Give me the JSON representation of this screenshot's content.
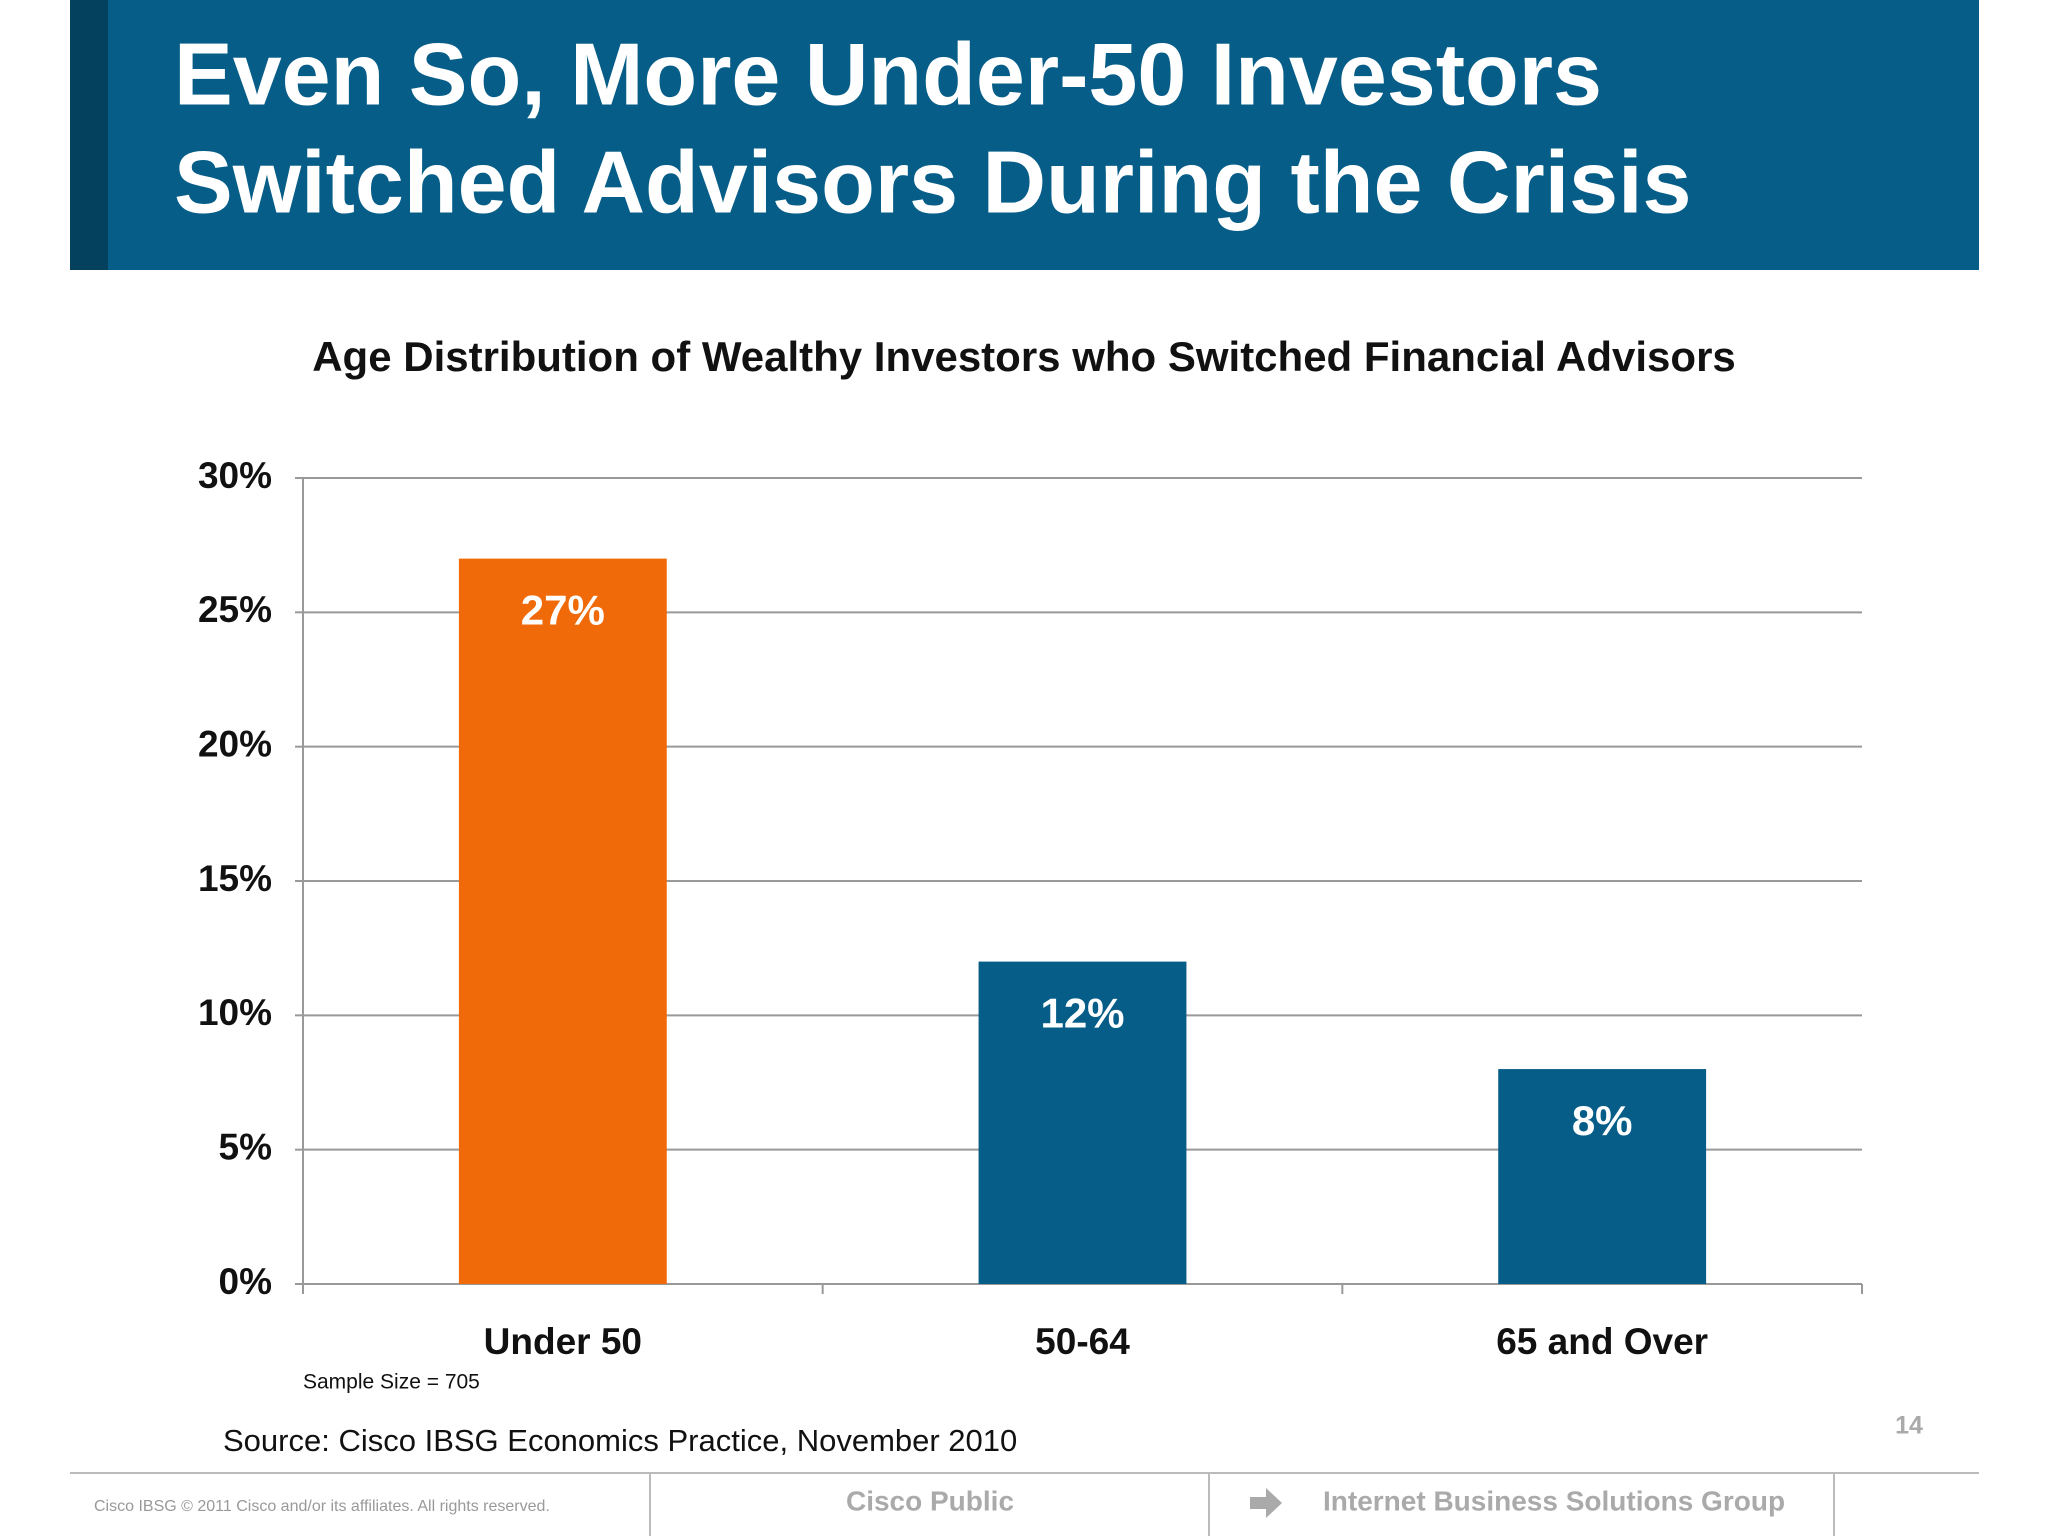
{
  "slide": {
    "title_lines": [
      "Even So, More Under-50 Investors",
      "Switched Advisors During the Crisis"
    ],
    "sample_note": "Sample Size = 705",
    "source": "Source: Cisco IBSG Economics Practice, November 2010",
    "page_number": "14",
    "footer_copyright": "Cisco IBSG © 2011 Cisco and/or its affiliates. All rights reserved.",
    "footer_classification": "Cisco Public",
    "footer_group": "Internet Business Solutions Group"
  },
  "chart_data": {
    "type": "bar",
    "title": "Age Distribution of Wealthy Investors who Switched Financial Advisors",
    "categories": [
      "Under 50",
      "50-64",
      "65 and Over"
    ],
    "values": [
      27,
      12,
      8
    ],
    "value_labels": [
      "27%",
      "12%",
      "8%"
    ],
    "colors": [
      "#f06a0a",
      "#065d88",
      "#065d88"
    ],
    "ylim": [
      0,
      30
    ],
    "yticks": [
      {
        "value": 0,
        "label": "0%"
      },
      {
        "value": 5,
        "label": "5%"
      },
      {
        "value": 10,
        "label": "10%"
      },
      {
        "value": 15,
        "label": "15%"
      },
      {
        "value": 20,
        "label": "20%"
      },
      {
        "value": 25,
        "label": "25%"
      },
      {
        "value": 30,
        "label": "30%"
      }
    ],
    "grid": true
  }
}
